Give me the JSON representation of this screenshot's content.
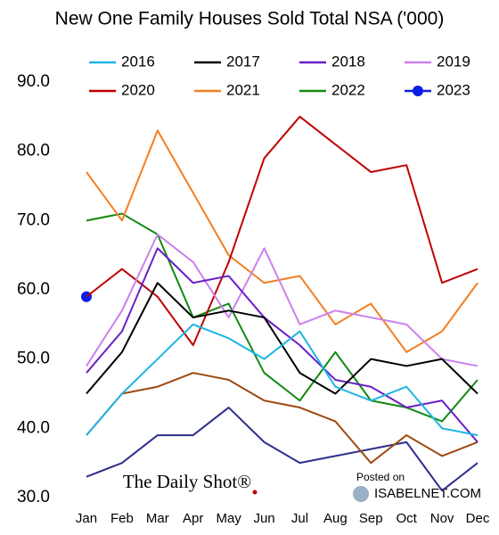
{
  "chart_data": {
    "type": "line",
    "title": "New One Family Houses Sold Total NSA ('000)",
    "categories": [
      "Jan",
      "Feb",
      "Mar",
      "Apr",
      "May",
      "Jun",
      "Jul",
      "Aug",
      "Sep",
      "Oct",
      "Nov",
      "Dec"
    ],
    "series": [
      {
        "name": "2016",
        "color": "#1eb4e6",
        "values": [
          39,
          45,
          50,
          55,
          53,
          50,
          54,
          46,
          44,
          46,
          40,
          39
        ]
      },
      {
        "name": "2017",
        "color": "#000000",
        "values": [
          45,
          51,
          61,
          56,
          57,
          56,
          48,
          45,
          50,
          49,
          50,
          45
        ]
      },
      {
        "name": "2018",
        "color": "#6a1fc8",
        "values": [
          48,
          54,
          66,
          61,
          62,
          56,
          52,
          47,
          46,
          43,
          44,
          38
        ]
      },
      {
        "name": "2019",
        "color": "#cc80ee",
        "values": [
          49,
          57,
          68,
          64,
          56,
          66,
          55,
          57,
          56,
          55,
          50,
          49
        ]
      },
      {
        "name": "2020",
        "color": "#c00000",
        "values": [
          59,
          63,
          59,
          52,
          64,
          79,
          85,
          81,
          77,
          78,
          61,
          63
        ]
      },
      {
        "name": "2021",
        "color": "#f57e20",
        "values": [
          77,
          70,
          83,
          74,
          65,
          61,
          62,
          55,
          58,
          51,
          54,
          61
        ]
      },
      {
        "name": "2022",
        "color": "#138a13",
        "values": [
          70,
          71,
          68,
          56,
          58,
          48,
          44,
          51,
          44,
          43,
          41,
          47
        ]
      },
      {
        "name": "2023",
        "color": "#0a1ee6",
        "markers": true,
        "values": [
          59,
          null,
          null,
          null,
          null,
          null,
          null,
          null,
          null,
          null,
          null,
          null
        ]
      },
      {
        "color": "#9c4a12",
        "values": [
          39,
          45,
          46,
          48,
          47,
          44,
          43,
          41,
          35,
          39,
          36,
          38
        ]
      },
      {
        "color": "#2e2e8c",
        "values": [
          33,
          35,
          39,
          39,
          43,
          38,
          35,
          36,
          37,
          38,
          31,
          35
        ]
      }
    ],
    "ylim": [
      30,
      90
    ],
    "yticks": [
      {
        "value": 30,
        "label": "30.0"
      },
      {
        "value": 40,
        "label": "40.0"
      },
      {
        "value": 50,
        "label": "50.0"
      },
      {
        "value": 60,
        "label": "60.0"
      },
      {
        "value": 70,
        "label": "70.0"
      },
      {
        "value": 80,
        "label": "80.0"
      },
      {
        "value": 90,
        "label": "90.0"
      }
    ],
    "grid": false,
    "annotations": [
      "The Daily Shot®",
      "Posted on",
      "ISABELNET.COM"
    ]
  }
}
